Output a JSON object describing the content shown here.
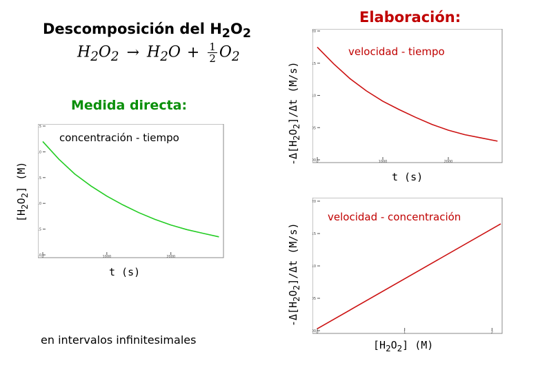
{
  "left_panel": {
    "title": "Descomposición del H",
    "title_sub1": "2",
    "title_o": "O",
    "title_sub2": "2",
    "equation": {
      "reactant": "H",
      "reactant_sub": "2",
      "reactant_o": "O",
      "reactant_o_sub": "2",
      "arrow": "→",
      "product1": "H",
      "product1_sub": "2",
      "product1_o": "O",
      "plus": "+",
      "frac_num": "1",
      "frac_den": "2",
      "product2": "O",
      "product2_sub": "2"
    },
    "medida": "Medida directa:",
    "chart_caption": "concentración - tiempo",
    "ylabel_a": "[H",
    "ylabel_sub": "2",
    "ylabel_b": "O",
    "ylabel_sub2": "2",
    "ylabel_c": "]  (M)",
    "xlabel": "t  (s)",
    "footer": "en intervalos infinitesimales"
  },
  "right_panel": {
    "title": "Elaboración:",
    "top_caption": "velocidad - tiempo",
    "top_ylabel_a": "-Δ[H",
    "top_ylabel_sub": "2",
    "top_ylabel_b": "O",
    "top_ylabel_sub2": "2",
    "top_ylabel_c": "]/Δt  (M/s)",
    "top_xlabel": "t  (s)",
    "bottom_caption": "velocidad - concentración",
    "bottom_ylabel_a": "-Δ[H",
    "bottom_ylabel_sub": "2",
    "bottom_ylabel_b": "O",
    "bottom_ylabel_sub2": "2",
    "bottom_ylabel_c": "]/Δt  (M/s)",
    "bottom_xlabel_a": "[H",
    "bottom_xlabel_sub": "2",
    "bottom_xlabel_b": "O",
    "bottom_xlabel_sub2": "2",
    "bottom_xlabel_c": "]  (M)"
  },
  "colors": {
    "green_curve": "#22cc22",
    "red_curve": "#cc1111",
    "green_text": "#0a8f0a",
    "red_text": "#c00000"
  },
  "chart_data": [
    {
      "type": "line",
      "x": [
        0,
        250,
        500,
        750,
        1000,
        1250,
        1500,
        1750,
        2000,
        2250,
        2500,
        2750
      ],
      "series": [
        {
          "values": [
            2.2,
            1.86,
            1.57,
            1.34,
            1.14,
            0.97,
            0.82,
            0.69,
            0.58,
            0.49,
            0.42,
            0.35
          ]
        }
      ],
      "xlim": [
        0,
        2800
      ],
      "ylim": [
        0.0,
        2.5
      ],
      "xticks": [
        "0",
        "1000",
        "2000"
      ],
      "yticks": [
        "0.0",
        "0.5",
        "1.0",
        "1.5",
        "2.0",
        "2.5"
      ]
    },
    {
      "type": "line",
      "x": [
        0,
        250,
        500,
        750,
        1000,
        1250,
        1500,
        1750,
        2000,
        2250,
        2500,
        2750
      ],
      "series": [
        {
          "values": [
            0.00175,
            0.00149,
            0.00126,
            0.00107,
            0.00091,
            0.00078,
            0.00066,
            0.00055,
            0.00046,
            0.00039,
            0.00034,
            0.00029
          ]
        }
      ],
      "xlim": [
        0,
        2800
      ],
      "ylim": [
        0.0,
        0.002
      ],
      "xticks": [
        "0",
        "1000",
        "2000"
      ],
      "yticks": [
        "0.0000",
        "0.0005",
        "0.0010",
        "0.0015",
        "0.0020"
      ]
    },
    {
      "type": "line",
      "x": [
        0.0,
        2.1
      ],
      "series": [
        {
          "values": [
            3e-05,
            0.00165
          ]
        }
      ],
      "xlim": [
        0.0,
        2.1
      ],
      "ylim": [
        0.0,
        0.002
      ],
      "xticks": [
        "0",
        "1",
        "2"
      ],
      "yticks": [
        "0.0000",
        "0.0005",
        "0.0010",
        "0.0015",
        "0.0020"
      ]
    }
  ]
}
